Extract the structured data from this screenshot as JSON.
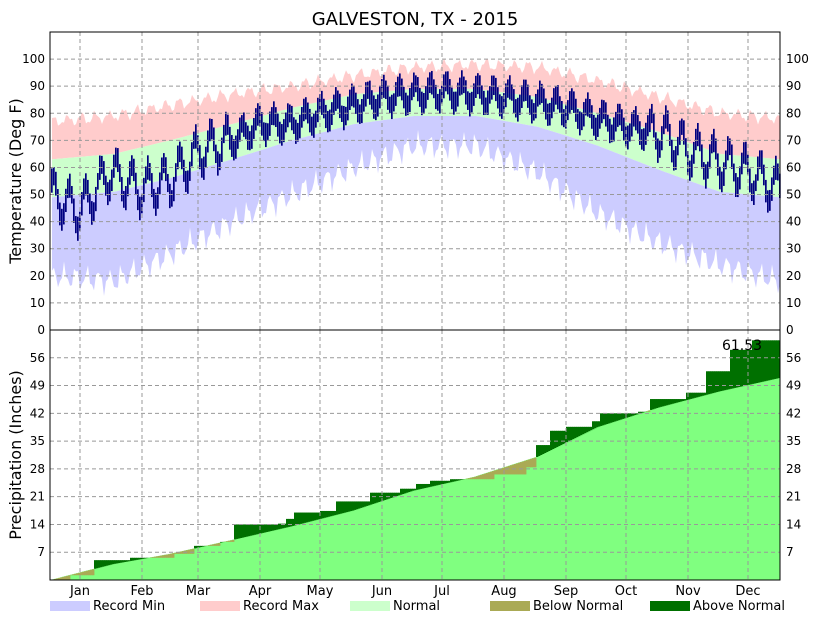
{
  "chart_data": {
    "type": "area",
    "title": "GALVESTON, TX - 2015",
    "months": [
      "Jan",
      "Feb",
      "Mar",
      "Apr",
      "May",
      "Jun",
      "Jul",
      "Aug",
      "Sep",
      "Oct",
      "Nov",
      "Dec"
    ],
    "colors": {
      "record_min": "#ccccff",
      "record_max": "#ffcccc",
      "normal_temp": "#ccffcc",
      "observed_temp": "#000080",
      "normal_precip": "#80ff80",
      "below_normal": "#aaaa55",
      "above_normal": "#007000",
      "grid": "#999999"
    },
    "temperature": {
      "ylabel": "Temperature (Deg F)",
      "ylim": [
        0,
        110
      ],
      "ticks": [
        0,
        10,
        20,
        30,
        40,
        50,
        60,
        70,
        80,
        90,
        100
      ],
      "normal_high_anchors": [
        [
          1,
          63
        ],
        [
          32,
          65
        ],
        [
          60,
          70
        ],
        [
          91,
          76
        ],
        [
          121,
          82
        ],
        [
          152,
          87
        ],
        [
          182,
          89
        ],
        [
          213,
          89
        ],
        [
          244,
          86
        ],
        [
          274,
          80
        ],
        [
          305,
          73
        ],
        [
          335,
          65
        ],
        [
          365,
          63
        ]
      ],
      "normal_low_anchors": [
        [
          1,
          49
        ],
        [
          32,
          51
        ],
        [
          60,
          56
        ],
        [
          91,
          63
        ],
        [
          121,
          70
        ],
        [
          152,
          76
        ],
        [
          182,
          79
        ],
        [
          213,
          79
        ],
        [
          244,
          75
        ],
        [
          274,
          68
        ],
        [
          305,
          59
        ],
        [
          335,
          51
        ],
        [
          365,
          49
        ]
      ],
      "record_high_anchors": [
        [
          1,
          77
        ],
        [
          32,
          79
        ],
        [
          60,
          83
        ],
        [
          91,
          87
        ],
        [
          121,
          90
        ],
        [
          152,
          94
        ],
        [
          182,
          97
        ],
        [
          213,
          98
        ],
        [
          244,
          97
        ],
        [
          274,
          92
        ],
        [
          305,
          86
        ],
        [
          335,
          80
        ],
        [
          365,
          78
        ]
      ],
      "record_low_anchors": [
        [
          1,
          20
        ],
        [
          32,
          18
        ],
        [
          60,
          28
        ],
        [
          91,
          40
        ],
        [
          121,
          50
        ],
        [
          152,
          60
        ],
        [
          182,
          68
        ],
        [
          213,
          68
        ],
        [
          244,
          58
        ],
        [
          274,
          43
        ],
        [
          305,
          32
        ],
        [
          335,
          24
        ],
        [
          365,
          18
        ]
      ],
      "observed_mean_anchors": [
        [
          1,
          50
        ],
        [
          15,
          44
        ],
        [
          30,
          58
        ],
        [
          45,
          52
        ],
        [
          60,
          55
        ],
        [
          75,
          66
        ],
        [
          91,
          70
        ],
        [
          105,
          76
        ],
        [
          121,
          76
        ],
        [
          135,
          80
        ],
        [
          152,
          83
        ],
        [
          166,
          86
        ],
        [
          182,
          87
        ],
        [
          196,
          88
        ],
        [
          213,
          87
        ],
        [
          227,
          86
        ],
        [
          244,
          84
        ],
        [
          258,
          82
        ],
        [
          274,
          78
        ],
        [
          288,
          75
        ],
        [
          305,
          73
        ],
        [
          320,
          66
        ],
        [
          335,
          62
        ],
        [
          350,
          58
        ],
        [
          365,
          52
        ]
      ]
    },
    "precipitation": {
      "ylabel": "Precipitation (Inches)",
      "ylim": [
        0,
        63
      ],
      "ticks": [
        7,
        14,
        21,
        28,
        35,
        42,
        49,
        56
      ],
      "total_label": "61.53",
      "normal_cumulative_anchors": [
        [
          0,
          0
        ],
        [
          31,
          4
        ],
        [
          59,
          6.5
        ],
        [
          90,
          10
        ],
        [
          120,
          13.5
        ],
        [
          151,
          17.5
        ],
        [
          181,
          22.5
        ],
        [
          212,
          26
        ],
        [
          243,
          31
        ],
        [
          273,
          38.5
        ],
        [
          304,
          43.5
        ],
        [
          334,
          47.5
        ],
        [
          365,
          51
        ]
      ],
      "observed_cumulative_steps": [
        [
          0,
          0
        ],
        [
          10,
          1.2
        ],
        [
          22,
          5
        ],
        [
          40,
          5.6
        ],
        [
          62,
          6.6
        ],
        [
          72,
          8.6
        ],
        [
          85,
          9.6
        ],
        [
          92,
          14
        ],
        [
          114,
          14.2
        ],
        [
          118,
          15.4
        ],
        [
          122,
          17
        ],
        [
          135,
          17.4
        ],
        [
          143,
          19.8
        ],
        [
          160,
          22
        ],
        [
          175,
          23
        ],
        [
          183,
          24.2
        ],
        [
          190,
          25
        ],
        [
          200,
          25.4
        ],
        [
          222,
          26.6
        ],
        [
          238,
          28.4
        ],
        [
          243,
          34
        ],
        [
          250,
          37.6
        ],
        [
          258,
          38.6
        ],
        [
          271,
          40
        ],
        [
          275,
          42
        ],
        [
          294,
          42.4
        ],
        [
          300,
          45.6
        ],
        [
          318,
          47.2
        ],
        [
          328,
          52.6
        ],
        [
          340,
          58
        ],
        [
          351,
          60.4
        ],
        [
          365,
          61.53
        ]
      ]
    },
    "legend": [
      {
        "label": "Record Min",
        "color": "#ccccff"
      },
      {
        "label": "Record Max",
        "color": "#ffcccc"
      },
      {
        "label": "Normal",
        "color": "#ccffcc"
      },
      {
        "label": "Below Normal",
        "color": "#aaaa55"
      },
      {
        "label": "Above Normal",
        "color": "#007000"
      }
    ]
  }
}
